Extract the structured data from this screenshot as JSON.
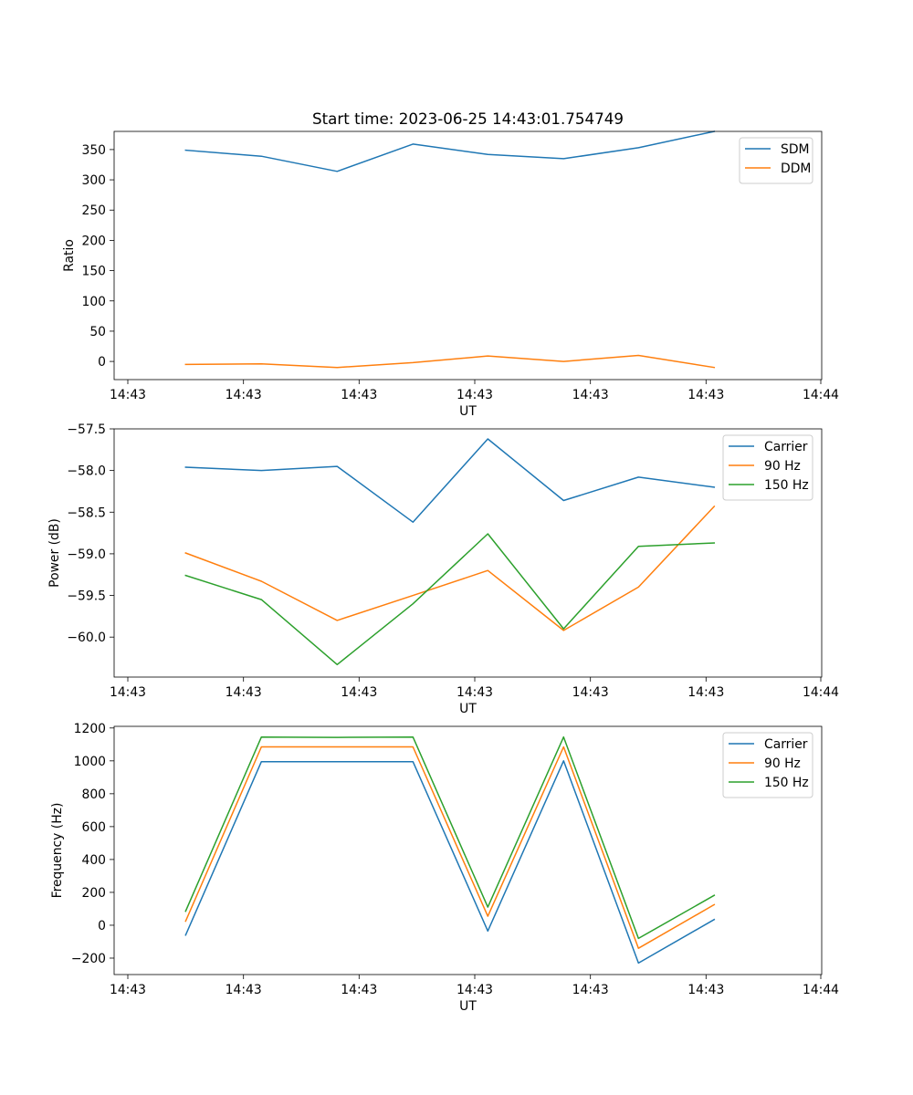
{
  "chart_data": [
    {
      "type": "line",
      "title": "Start time: 2023-06-25 14:43:01.754749",
      "xlabel": "UT",
      "ylabel": "Ratio",
      "x_tick_labels": [
        "14:43",
        "14:43",
        "14:43",
        "14:43",
        "14:43",
        "14:43",
        "14:44"
      ],
      "y_tick_labels": [
        "0",
        "50",
        "100",
        "150",
        "200",
        "250",
        "300",
        "350"
      ],
      "y_ticks": [
        0,
        50,
        100,
        150,
        200,
        250,
        300,
        350
      ],
      "ylim": [
        -30,
        380
      ],
      "legend_position": "upper-right",
      "series": [
        {
          "name": "SDM",
          "color": "#1f77b4",
          "values": [
            349,
            339,
            314,
            359,
            342,
            335,
            353,
            380
          ]
        },
        {
          "name": "DDM",
          "color": "#ff7f0e",
          "values": [
            -5,
            -4,
            -10,
            -2,
            9,
            0,
            10,
            -10
          ]
        }
      ]
    },
    {
      "type": "line",
      "title": "",
      "xlabel": "UT",
      "ylabel": "Power (dB)",
      "x_tick_labels": [
        "14:43",
        "14:43",
        "14:43",
        "14:43",
        "14:43",
        "14:43",
        "14:44"
      ],
      "y_tick_labels": [
        "−60.0",
        "−59.5",
        "−59.0",
        "−58.5",
        "−58.0",
        "−57.5"
      ],
      "y_ticks": [
        -60.0,
        -59.5,
        -59.0,
        -58.5,
        -58.0,
        -57.5
      ],
      "ylim": [
        -60.48,
        -57.5
      ],
      "legend_position": "upper-right",
      "series": [
        {
          "name": "Carrier",
          "color": "#1f77b4",
          "values": [
            -57.96,
            -58.0,
            -57.95,
            -58.62,
            -57.62,
            -58.36,
            -58.08,
            -58.2
          ]
        },
        {
          "name": "90 Hz",
          "color": "#ff7f0e",
          "values": [
            -58.99,
            -59.33,
            -59.8,
            -59.5,
            -59.2,
            -59.92,
            -59.4,
            -58.43
          ]
        },
        {
          "name": "150 Hz",
          "color": "#2ca02c",
          "values": [
            -59.26,
            -59.55,
            -60.33,
            -59.6,
            -58.76,
            -59.9,
            -58.91,
            -58.87
          ]
        }
      ]
    },
    {
      "type": "line",
      "title": "",
      "xlabel": "UT",
      "ylabel": "Frequency (Hz)",
      "x_tick_labels": [
        "14:43",
        "14:43",
        "14:43",
        "14:43",
        "14:43",
        "14:43",
        "14:44"
      ],
      "y_tick_labels": [
        "−200",
        "0",
        "200",
        "400",
        "600",
        "800",
        "1000",
        "1200"
      ],
      "y_ticks": [
        -200,
        0,
        200,
        400,
        600,
        800,
        1000,
        1200
      ],
      "ylim": [
        -300,
        1210
      ],
      "legend_position": "upper-right",
      "series": [
        {
          "name": "Carrier",
          "color": "#1f77b4",
          "values": [
            -60,
            995,
            995,
            995,
            -35,
            1000,
            -230,
            35
          ]
        },
        {
          "name": "90 Hz",
          "color": "#ff7f0e",
          "values": [
            25,
            1085,
            1085,
            1085,
            55,
            1085,
            -140,
            125
          ]
        },
        {
          "name": "150 Hz",
          "color": "#2ca02c",
          "values": [
            85,
            1145,
            1143,
            1145,
            110,
            1145,
            -80,
            182
          ]
        }
      ]
    }
  ]
}
